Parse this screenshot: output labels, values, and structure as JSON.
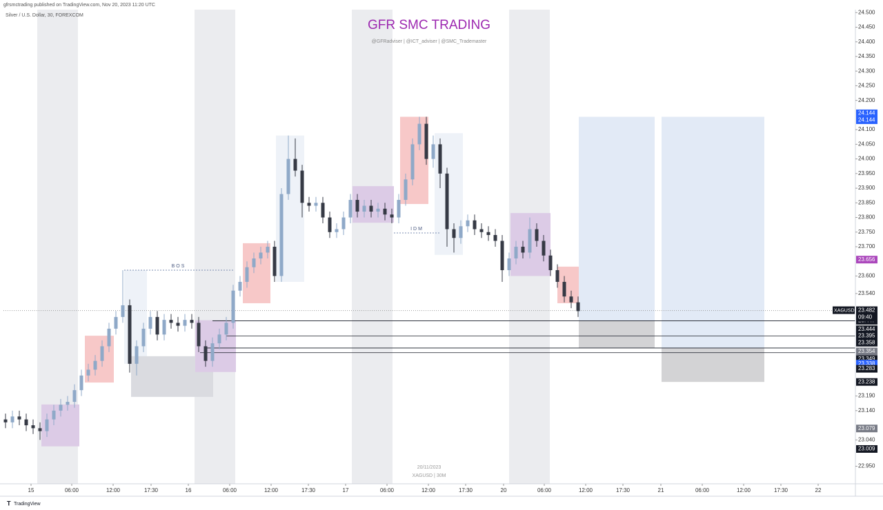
{
  "chart_data": {
    "type": "candlestick",
    "header": "gfrsmctrading published on TradingView.com, Nov 20, 2023 11:20 UTC",
    "symbol_desc": "Silver / U.S. Dollar, 30, FOREXCOM",
    "title": "GFR SMC TRADING",
    "subtitle": "@GFRadviser  |  @ICT_adviser  |  @SMC_Trademaster",
    "watermark_date": "20/11/2023",
    "watermark_symbol": "XAGUSD | 30M",
    "brand": "TradingView",
    "up_color": "#8fa9c8",
    "down_color": "#363a45",
    "grid": false,
    "xlim": [
      -0.3,
      123.2
    ],
    "ylim": [
      22.89,
      24.51
    ],
    "xticks": [
      {
        "value": 3.7,
        "label": "15"
      },
      {
        "value": 9.6,
        "label": "06:00"
      },
      {
        "value": 15.6,
        "label": "12:00"
      },
      {
        "value": 21.1,
        "label": "17:30"
      },
      {
        "value": 26.5,
        "label": "16"
      },
      {
        "value": 32.5,
        "label": "06:00"
      },
      {
        "value": 38.5,
        "label": "12:00"
      },
      {
        "value": 43.9,
        "label": "17:30"
      },
      {
        "value": 49.3,
        "label": "17"
      },
      {
        "value": 55.3,
        "label": "06:00"
      },
      {
        "value": 61.3,
        "label": "12:00"
      },
      {
        "value": 66.7,
        "label": "17:30"
      },
      {
        "value": 72.2,
        "label": "20"
      },
      {
        "value": 78.1,
        "label": "06:00"
      },
      {
        "value": 84.1,
        "label": "12:00"
      },
      {
        "value": 89.5,
        "label": "17:30"
      },
      {
        "value": 95,
        "label": "21"
      },
      {
        "value": 101,
        "label": "06:00"
      },
      {
        "value": 107,
        "label": "12:00"
      },
      {
        "value": 112.4,
        "label": "17:30"
      },
      {
        "value": 117.8,
        "label": "22"
      }
    ],
    "yticks": [
      {
        "value": 24.5,
        "label": "24.500"
      },
      {
        "value": 24.45,
        "label": "24.450"
      },
      {
        "value": 24.4,
        "label": "24.400"
      },
      {
        "value": 24.35,
        "label": "24.350"
      },
      {
        "value": 24.3,
        "label": "24.300"
      },
      {
        "value": 24.25,
        "label": "24.250"
      },
      {
        "value": 24.2,
        "label": "24.200"
      },
      {
        "value": 24.1,
        "label": "24.100"
      },
      {
        "value": 24.05,
        "label": "24.050"
      },
      {
        "value": 24.0,
        "label": "24.000"
      },
      {
        "value": 23.95,
        "label": "23.950"
      },
      {
        "value": 23.9,
        "label": "23.900"
      },
      {
        "value": 23.85,
        "label": "23.850"
      },
      {
        "value": 23.8,
        "label": "23.800"
      },
      {
        "value": 23.75,
        "label": "23.750"
      },
      {
        "value": 23.7,
        "label": "23.700"
      },
      {
        "value": 23.6,
        "label": "23.600"
      },
      {
        "value": 23.54,
        "label": "23.540"
      },
      {
        "value": 23.19,
        "label": "23.190"
      },
      {
        "value": 23.14,
        "label": "23.140"
      },
      {
        "value": 23.04,
        "label": "23.040"
      },
      {
        "value": 22.95,
        "label": "22.950"
      }
    ],
    "open": [
      23.11,
      23.1,
      23.12,
      23.11,
      23.09,
      23.08,
      23.07,
      23.11,
      23.14,
      23.16,
      23.17,
      23.21,
      23.26,
      23.28,
      23.31,
      23.36,
      23.42,
      23.46,
      23.5,
      23.3,
      23.36,
      23.42,
      23.46,
      23.4,
      23.45,
      23.44,
      23.43,
      23.45,
      23.44,
      23.36,
      23.31,
      23.37,
      23.4,
      23.44,
      23.55,
      23.58,
      23.63,
      23.66,
      23.68,
      23.7,
      23.6,
      23.88,
      24.0,
      23.96,
      23.85,
      23.84,
      23.85,
      23.8,
      23.75,
      23.76,
      23.8,
      23.86,
      23.82,
      23.84,
      23.82,
      23.83,
      23.81,
      23.8,
      23.86,
      23.93,
      24.05,
      24.12,
      24.0,
      24.05,
      23.95,
      23.76,
      23.73,
      23.77,
      23.79,
      23.76,
      23.75,
      23.74,
      23.72,
      23.62,
      23.66,
      23.7,
      23.68,
      23.76,
      23.72,
      23.67,
      23.62,
      23.58,
      23.53,
      23.51
    ],
    "high": [
      23.13,
      23.14,
      23.14,
      23.13,
      23.11,
      23.1,
      23.13,
      23.16,
      23.18,
      23.19,
      23.23,
      23.28,
      23.3,
      23.33,
      23.38,
      23.44,
      23.48,
      23.62,
      23.52,
      23.38,
      23.44,
      23.48,
      23.48,
      23.47,
      23.47,
      23.46,
      23.47,
      23.47,
      23.46,
      23.38,
      23.39,
      23.42,
      23.46,
      23.57,
      23.6,
      23.65,
      23.68,
      23.7,
      23.72,
      23.72,
      23.9,
      24.08,
      24.07,
      23.98,
      23.87,
      23.87,
      23.87,
      23.82,
      23.78,
      23.82,
      23.88,
      23.88,
      23.86,
      23.86,
      23.85,
      23.85,
      23.83,
      23.88,
      23.95,
      24.07,
      24.144,
      24.144,
      24.08,
      24.07,
      23.97,
      23.78,
      23.79,
      23.81,
      23.81,
      23.78,
      23.77,
      23.76,
      23.74,
      23.68,
      23.72,
      23.72,
      23.8,
      23.78,
      23.74,
      23.69,
      23.64,
      23.6,
      23.55,
      23.53
    ],
    "low": [
      23.08,
      23.08,
      23.09,
      23.07,
      23.06,
      23.04,
      23.05,
      23.09,
      23.12,
      23.14,
      23.15,
      23.19,
      23.24,
      23.26,
      23.29,
      23.34,
      23.4,
      23.44,
      23.27,
      23.26,
      23.34,
      23.4,
      23.38,
      23.38,
      23.42,
      23.41,
      23.41,
      23.42,
      23.34,
      23.29,
      23.29,
      23.35,
      23.38,
      23.42,
      23.53,
      23.56,
      23.61,
      23.64,
      23.66,
      23.58,
      23.58,
      23.86,
      23.94,
      23.8,
      23.82,
      23.82,
      23.78,
      23.73,
      23.73,
      23.74,
      23.78,
      23.8,
      23.8,
      23.8,
      23.8,
      23.79,
      23.78,
      23.78,
      23.84,
      23.91,
      24.03,
      23.98,
      23.97,
      23.9,
      23.7,
      23.68,
      23.71,
      23.75,
      23.74,
      23.73,
      23.72,
      23.7,
      23.58,
      23.6,
      23.64,
      23.66,
      23.66,
      23.7,
      23.65,
      23.6,
      23.56,
      23.51,
      23.49,
      23.46
    ],
    "close": [
      23.1,
      23.12,
      23.11,
      23.09,
      23.08,
      23.07,
      23.11,
      23.14,
      23.16,
      23.17,
      23.21,
      23.26,
      23.28,
      23.31,
      23.36,
      23.42,
      23.46,
      23.5,
      23.3,
      23.36,
      23.42,
      23.46,
      23.4,
      23.45,
      23.44,
      23.43,
      23.45,
      23.44,
      23.36,
      23.31,
      23.37,
      23.4,
      23.44,
      23.55,
      23.58,
      23.63,
      23.66,
      23.68,
      23.7,
      23.6,
      23.88,
      24.0,
      23.96,
      23.85,
      23.84,
      23.85,
      23.8,
      23.75,
      23.76,
      23.8,
      23.86,
      23.82,
      23.84,
      23.82,
      23.83,
      23.81,
      23.8,
      23.86,
      23.93,
      24.05,
      24.12,
      24.0,
      24.05,
      23.95,
      23.76,
      23.73,
      23.77,
      23.79,
      23.76,
      23.75,
      23.74,
      23.72,
      23.62,
      23.66,
      23.7,
      23.68,
      23.76,
      23.72,
      23.67,
      23.62,
      23.58,
      23.53,
      23.51,
      23.48
    ],
    "zones": [
      {
        "x": [
          39.2,
          43.3
        ],
        "y": [
          23.58,
          24.08
        ],
        "color": "#eef2f8"
      },
      {
        "x": [
          62.2,
          66.3
        ],
        "y": [
          23.672,
          24.088
        ],
        "color": "#eef2f8"
      },
      {
        "x": [
          17.2,
          20.5
        ],
        "y": [
          23.3,
          23.62
        ],
        "color": "#eef2f8"
      },
      {
        "x": [
          5.2,
          10.7
        ],
        "y": [
          23.018,
          23.161
        ],
        "color": "#dccbe6"
      },
      {
        "x": [
          11.5,
          15.7
        ],
        "y": [
          23.236,
          23.396
        ],
        "color": "#f7c8c8"
      },
      {
        "x": [
          18.2,
          30.1
        ],
        "y": [
          23.187,
          23.326
        ],
        "color": "#dadbe0"
      },
      {
        "x": [
          27.5,
          33.4
        ],
        "y": [
          23.272,
          23.449
        ],
        "color": "#dccbe6"
      },
      {
        "x": [
          34.4,
          38.4
        ],
        "y": [
          23.507,
          23.712
        ],
        "color": "#f7c8c8"
      },
      {
        "x": [
          50.3,
          56.3
        ],
        "y": [
          23.782,
          23.907
        ],
        "color": "#dccbe6"
      },
      {
        "x": [
          57.2,
          61.3
        ],
        "y": [
          23.846,
          24.144
        ],
        "color": "#f7c8c8"
      },
      {
        "x": [
          73.2,
          79.0
        ],
        "y": [
          23.6,
          23.815
        ],
        "color": "#dccbe6"
      },
      {
        "x": [
          80.0,
          83.1
        ],
        "y": [
          23.507,
          23.632
        ],
        "color": "#f7c8c8"
      },
      {
        "x": [
          83.1,
          94.1
        ],
        "y": [
          23.447,
          24.144
        ],
        "color": "#e2eaf6"
      },
      {
        "x": [
          83.1,
          94.1
        ],
        "y": [
          23.354,
          23.447
        ],
        "color": "#d3d3d5"
      },
      {
        "x": [
          95.1,
          110.0
        ],
        "y": [
          23.354,
          24.144
        ],
        "color": "#e2eaf6"
      },
      {
        "x": [
          95.1,
          110.0
        ],
        "y": [
          23.238,
          23.354
        ],
        "color": "#d3d3d5"
      }
    ],
    "annotations": [
      {
        "text": "BOS",
        "price": 23.62,
        "x": [
          17.2,
          33.0
        ]
      },
      {
        "text": "IDM",
        "price": 23.747,
        "x": [
          56.3,
          63.0
        ]
      }
    ],
    "levels": [
      {
        "price": 23.447,
        "x0": 30.0
      },
      {
        "price": 23.395,
        "x0": 32.0
      },
      {
        "price": 23.354,
        "x0": 29.0
      },
      {
        "price": 23.338,
        "x0": 28.2
      }
    ],
    "last_price": {
      "value": 23.482,
      "symbol": "XAGUSD",
      "countdown": "09:40"
    },
    "price_tags": [
      {
        "value": 24.144,
        "color": "#2962ff",
        "offset": -5
      },
      {
        "value": 24.144,
        "color": "#2962ff",
        "offset": 5
      },
      {
        "value": 23.656,
        "color": "#ab47bc",
        "offset": 0
      },
      {
        "value": 23.447,
        "color": "#131722",
        "offset": 0
      },
      {
        "value": 23.444,
        "color": "#131722",
        "offset": 11
      },
      {
        "value": 23.395,
        "color": "#131722",
        "offset": 0
      },
      {
        "value": 23.358,
        "color": "#131722",
        "offset": -6
      },
      {
        "value": 23.354,
        "color": "#787b86",
        "offset": 5
      },
      {
        "value": 23.349,
        "color": "#131722",
        "offset": 14
      },
      {
        "value": 23.338,
        "color": "#2962ff",
        "offset": 16
      },
      {
        "value": 23.283,
        "color": "#131722",
        "offset": 0
      },
      {
        "value": 23.238,
        "color": "#131722",
        "offset": 0
      },
      {
        "value": 23.079,
        "color": "#787b86",
        "offset": 0
      },
      {
        "value": 23.009,
        "color": "#131722",
        "offset": 0
      }
    ]
  }
}
